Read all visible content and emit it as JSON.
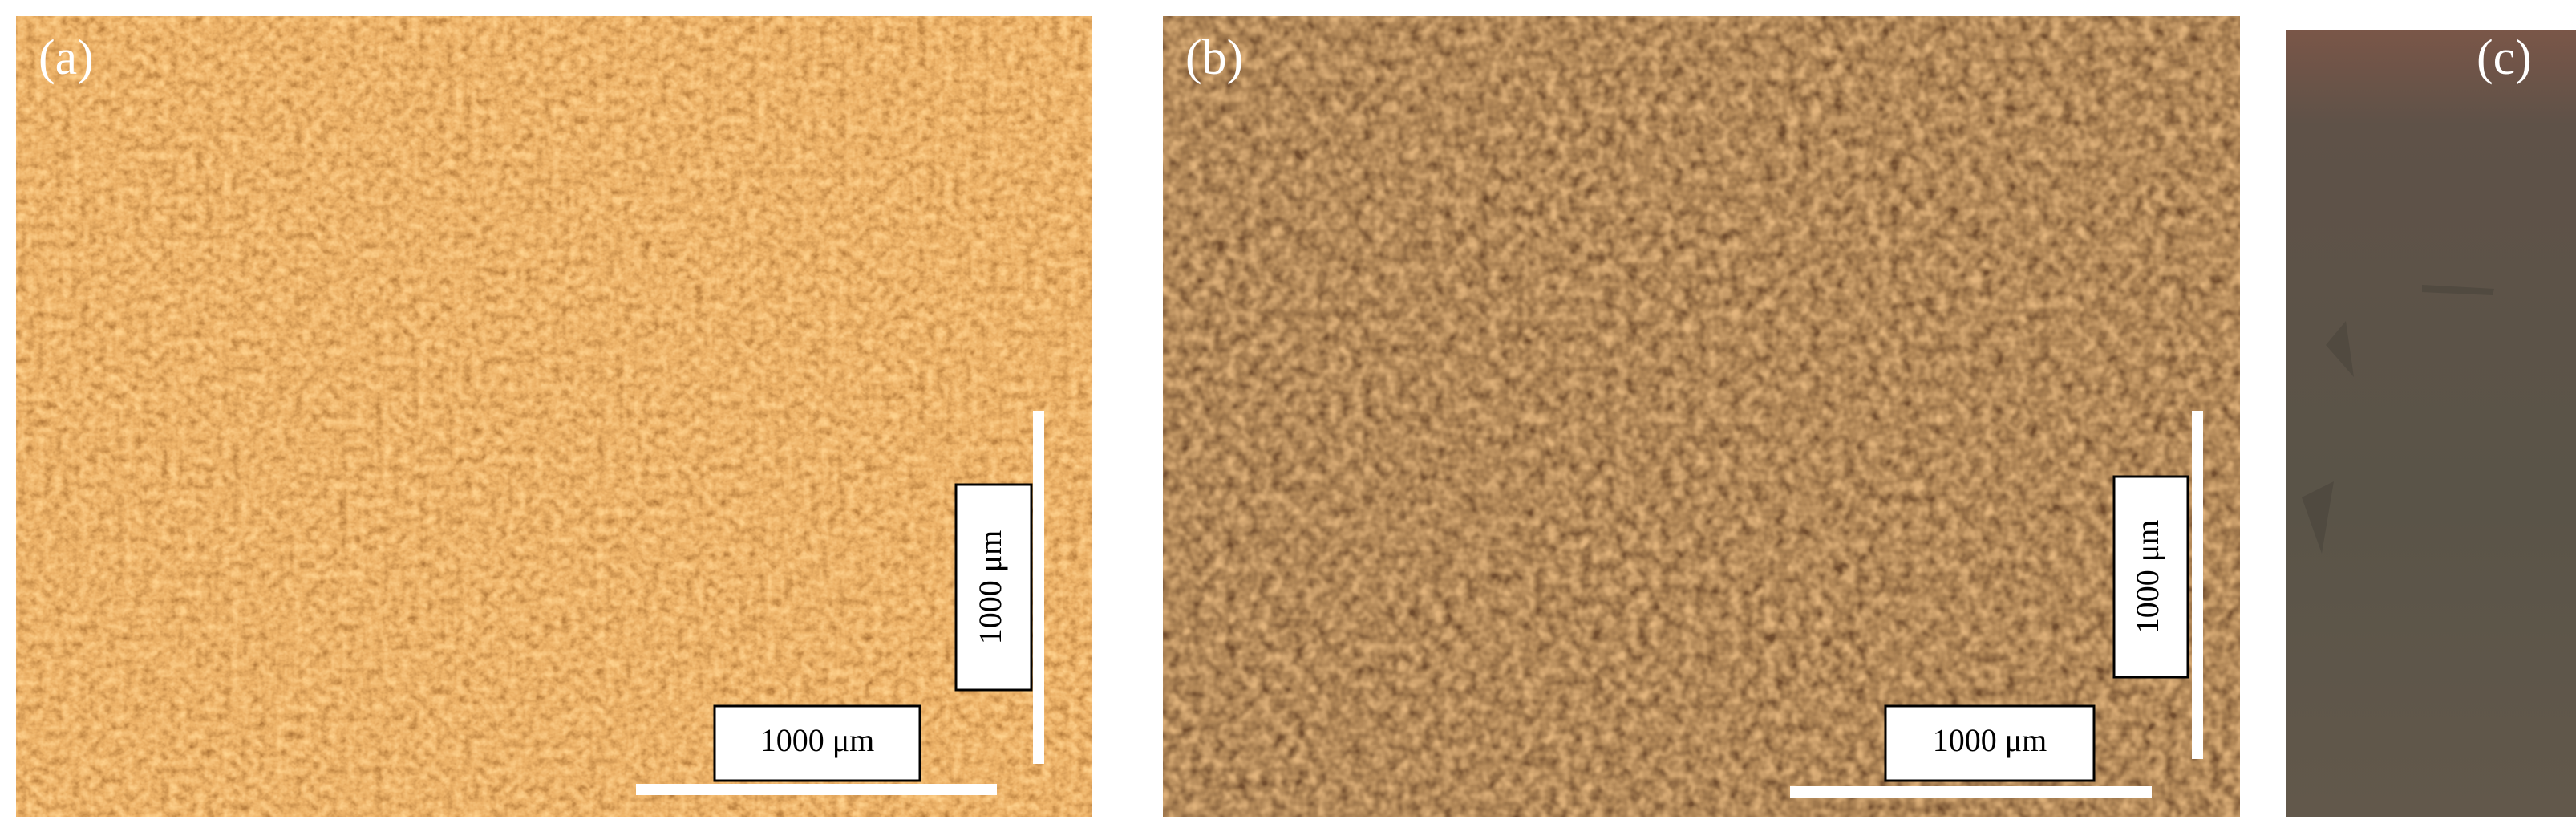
{
  "panels": [
    {
      "label": "(a)",
      "scale_bar_horizontal": "1000 μm",
      "scale_bar_vertical": "1000 μm"
    },
    {
      "label": "(b)",
      "scale_bar_horizontal": "1000 μm",
      "scale_bar_vertical": "1000 μm"
    },
    {
      "label": "(c)"
    }
  ]
}
